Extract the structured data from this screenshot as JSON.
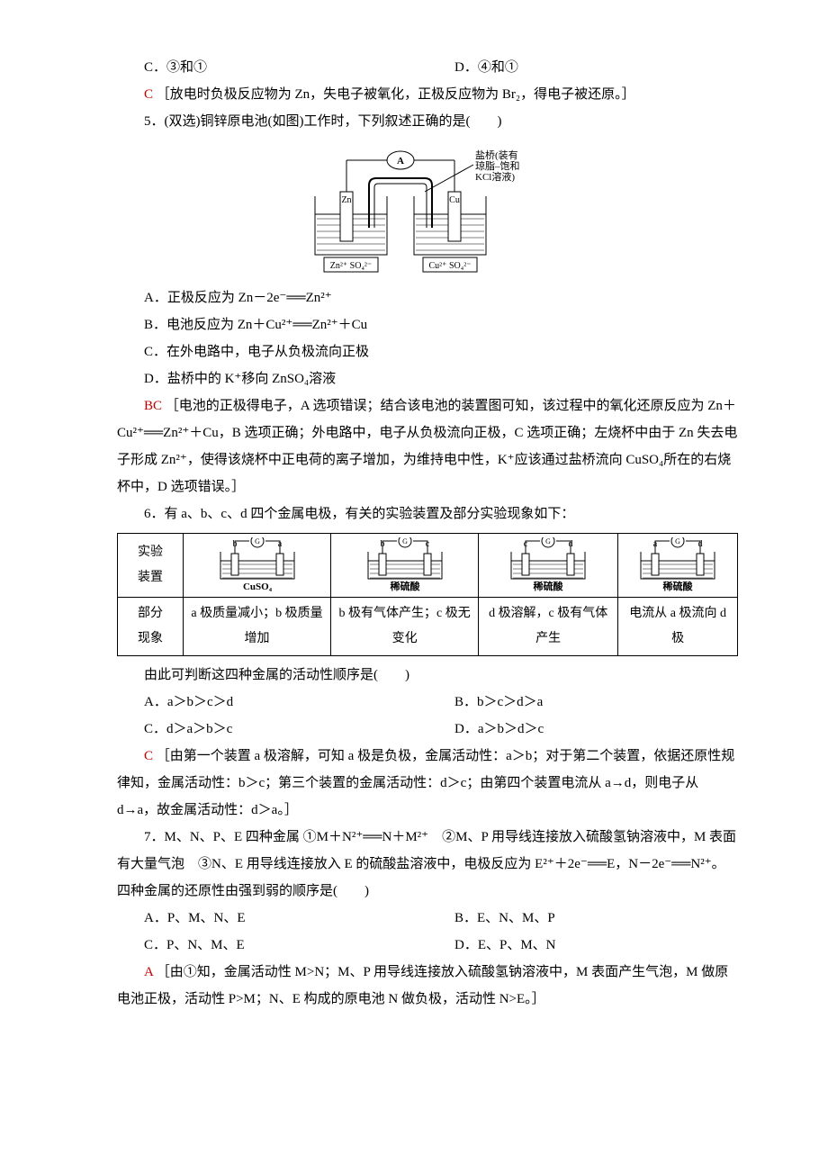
{
  "q4": {
    "optC": "C．③和①",
    "optD": "D．④和①",
    "ansLetter": "C",
    "ansText": "［放电时负极反应物为 Zn，失电子被氧化，正极反应物为 Br₂，得电子被还原。］"
  },
  "q5": {
    "stem": "5．(双选)铜锌原电池(如图)工作时，下列叙述正确的是(　　)",
    "optA": "A．正极反应为 Zn－2e⁻══Zn²⁺",
    "optB": "B．电池反应为 Zn＋Cu²⁺══Zn²⁺＋Cu",
    "optC": "C．在外电路中，电子从负极流向正极",
    "optD": "D．盐桥中的 K⁺移向 ZnSO₄溶液",
    "ansLetter": "BC",
    "ansText": "［电池的正极得电子，A 选项错误；结合该电池的装置图可知，该过程中的氧化还原反应为 Zn＋Cu²⁺══Zn²⁺＋Cu，B 选项正确；外电路中，电子从负极流向正极，C 选项正确；左烧杯中由于 Zn 失去电子形成 Zn²⁺，使得该烧杯中正电荷的离子增加，为维持电中性，K⁺应该通过盐桥流向 CuSO₄所在的右烧杯中，D 选项错误。］",
    "diagram": {
      "labelA": "A",
      "labelBridge": "盐桥(装有\n琼脂–饱和\nKCl溶液)",
      "leftElec": "Zn",
      "rightElec": "Cu",
      "leftSol": "Zn²⁺ SO₄²⁻",
      "rightSol": "Cu²⁺ SO₄²⁻",
      "colors": {
        "stroke": "#000000",
        "fill": "#ffffff",
        "hatch": "#000000",
        "text": "#000000"
      }
    }
  },
  "q6": {
    "stem": "6．有 a、b、c、d 四个金属电极，有关的实验装置及部分实验现象如下：",
    "rowLabels": {
      "r1": "实验\n装置",
      "r2": "部分\n现象"
    },
    "cells": {
      "c1sol": "CuSO₄",
      "c1l": "b",
      "c1r": "a",
      "c2sol": "稀硫酸",
      "c2l": "b",
      "c2r": "c",
      "c3sol": "稀硫酸",
      "c3l": "c",
      "c3r": "d",
      "c4sol": "稀硫酸",
      "c4l": "a",
      "c4r": "d"
    },
    "phen": {
      "p1": "a 极质量减小；b 极质量增加",
      "p2": "b 极有气体产生；c 极无变化",
      "p3": "d 极溶解，c 极有气体产生",
      "p4": "电流从 a 极流向 d 极"
    },
    "tail": "由此可判断这四种金属的活动性顺序是(　　)",
    "optA": "A．a＞b＞c＞d",
    "optB": "B．b＞c＞d＞a",
    "optC": "C．d＞a＞b＞c",
    "optD": "D．a＞b＞d＞c",
    "ansLetter": "C",
    "ansText": "［由第一个装置 a 极溶解，可知 a 极是负极，金属活动性：a＞b；对于第二个装置，依据还原性规律知，金属活动性：b＞c；第三个装置的金属活动性：d＞c；由第四个装置电流从 a→d，则电子从 d→a，故金属活动性：d＞a。］"
  },
  "q7": {
    "stem": "7．M、N、P、E 四种金属 ①M＋N²⁺══N＋M²⁺　②M、P 用导线连接放入硫酸氢钠溶液中，M 表面有大量气泡　③N、E 用导线连接放入 E 的硫酸盐溶液中，电极反应为 E²⁺＋2e⁻══E，N－2e⁻══N²⁺。四种金属的还原性由强到弱的顺序是(　　)",
    "optA": "A．P、M、N、E",
    "optB": "B．E、N、M、P",
    "optC": "C．P、N、M、E",
    "optD": "D．E、P、M、N",
    "ansLetter": "A",
    "ansText": "［由①知，金属活动性 M>N；M、P 用导线连接放入硫酸氢钠溶液中，M 表面产生气泡，M 做原电池正极，活动性 P>M；N、E 构成的原电池 N 做负极，活动性 N>E。］"
  }
}
